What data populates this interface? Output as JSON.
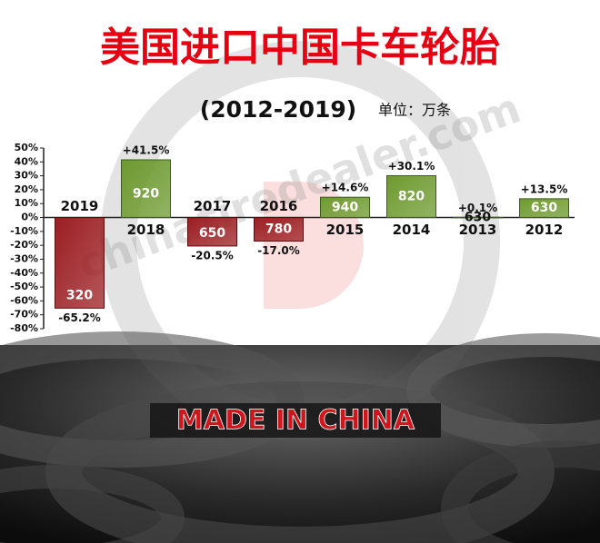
{
  "chart_data": {
    "type": "bar",
    "title": "美国进口中国卡车轮胎",
    "subtitle": "(2012-2019)",
    "unit": "单位：万条",
    "watermark": "chinatiredealer.com",
    "footer": "MADE IN CHINA",
    "categories": [
      "2019",
      "2018",
      "2017",
      "2016",
      "2015",
      "2014",
      "2013",
      "2012"
    ],
    "values": [
      -65.2,
      41.5,
      -20.5,
      -17.0,
      14.6,
      30.1,
      0.1,
      13.5
    ],
    "value_labels": [
      "-65.2%",
      "+41.5%",
      "-20.5%",
      "-17.0%",
      "+14.6%",
      "+30.1%",
      "+0.1%",
      "+13.5%"
    ],
    "volumes": [
      320,
      920,
      650,
      780,
      940,
      820,
      630,
      630
    ],
    "positive_color": "#6e9a30",
    "negative_color": "#9b1e22",
    "ylim": [
      -80,
      50
    ],
    "yticks": [
      {
        "value": 50,
        "label": "50%"
      },
      {
        "value": 40,
        "label": "40%"
      },
      {
        "value": 30,
        "label": "30%"
      },
      {
        "value": 20,
        "label": "20%"
      },
      {
        "value": 10,
        "label": "10%"
      },
      {
        "value": 0,
        "label": "0%"
      },
      {
        "value": -10,
        "label": "-10%"
      },
      {
        "value": -20,
        "label": "-20%"
      },
      {
        "value": -30,
        "label": "-30%"
      },
      {
        "value": -40,
        "label": "-40%"
      },
      {
        "value": -50,
        "label": "-50%"
      },
      {
        "value": -60,
        "label": "-60%"
      },
      {
        "value": -70,
        "label": "-70%"
      },
      {
        "value": -80,
        "label": "-80%"
      }
    ]
  }
}
